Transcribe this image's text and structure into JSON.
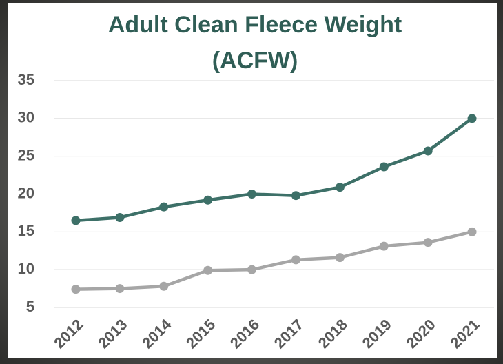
{
  "chart_data": {
    "type": "line",
    "title": [
      "Adult Clean Fleece Weight",
      "(ACFW)"
    ],
    "categories": [
      "2012",
      "2013",
      "2014",
      "2015",
      "2016",
      "2017",
      "2018",
      "2019",
      "2020",
      "2021"
    ],
    "series": [
      {
        "color": "#3d7068",
        "values": [
          16.5,
          16.9,
          18.3,
          19.2,
          20.0,
          19.8,
          20.9,
          23.6,
          25.7,
          30.0
        ]
      },
      {
        "color": "#a6a6a6",
        "values": [
          7.4,
          7.5,
          7.8,
          9.9,
          10.0,
          11.3,
          11.6,
          13.1,
          13.6,
          15.0
        ]
      }
    ],
    "ylim": [
      5,
      35
    ],
    "yticks": [
      5,
      10,
      15,
      20,
      25,
      30,
      35
    ],
    "grid": true
  }
}
